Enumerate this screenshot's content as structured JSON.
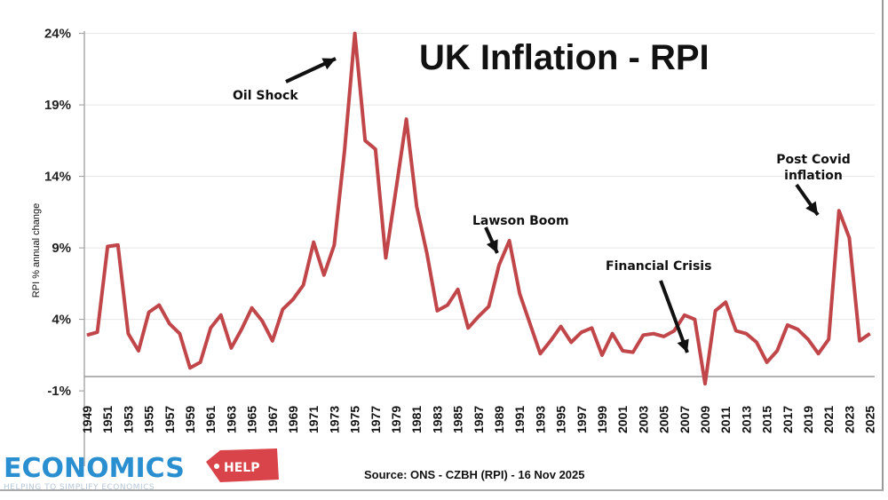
{
  "chart_data": {
    "type": "line",
    "title": "UK Inflation - RPI",
    "ylabel": "RPI % annual change",
    "xlabel": "",
    "ylim": [
      -1,
      24
    ],
    "yticks": [
      "24%",
      "19%",
      "14%",
      "9%",
      "4%",
      "-1%"
    ],
    "ytick_values": [
      24,
      19,
      14,
      9,
      4,
      -1
    ],
    "grid": true,
    "line_color": "#c0464a",
    "x": [
      1949,
      1950,
      1951,
      1952,
      1953,
      1954,
      1955,
      1956,
      1957,
      1958,
      1959,
      1960,
      1961,
      1962,
      1963,
      1964,
      1965,
      1966,
      1967,
      1968,
      1969,
      1970,
      1971,
      1972,
      1973,
      1974,
      1975,
      1976,
      1977,
      1978,
      1979,
      1980,
      1981,
      1982,
      1983,
      1984,
      1985,
      1986,
      1987,
      1988,
      1989,
      1990,
      1991,
      1992,
      1993,
      1994,
      1995,
      1996,
      1997,
      1998,
      1999,
      2000,
      2001,
      2002,
      2003,
      2004,
      2005,
      2006,
      2007,
      2008,
      2009,
      2010,
      2011,
      2012,
      2013,
      2014,
      2015,
      2016,
      2017,
      2018,
      2019,
      2020,
      2021,
      2022,
      2023,
      2024,
      2025
    ],
    "values": [
      2.9,
      3.1,
      9.1,
      9.2,
      3.0,
      1.8,
      4.5,
      5.0,
      3.7,
      3.0,
      0.6,
      1.0,
      3.4,
      4.3,
      2.0,
      3.3,
      4.8,
      3.9,
      2.5,
      4.7,
      5.4,
      6.4,
      9.4,
      7.1,
      9.2,
      15.8,
      24.0,
      16.5,
      15.9,
      8.3,
      13.1,
      18.0,
      11.9,
      8.6,
      4.6,
      5.0,
      6.1,
      3.4,
      4.2,
      4.9,
      7.8,
      9.5,
      5.8,
      3.7,
      1.6,
      2.5,
      3.5,
      2.4,
      3.1,
      3.4,
      1.5,
      3.0,
      1.8,
      1.7,
      2.9,
      3.0,
      2.8,
      3.2,
      4.3,
      4.0,
      -0.5,
      4.6,
      5.2,
      3.2,
      3.0,
      2.4,
      1.0,
      1.8,
      3.6,
      3.3,
      2.6,
      1.6,
      2.6,
      11.6,
      9.7,
      2.5,
      3.0
    ],
    "xtick_labels": [
      "1949",
      "1951",
      "1953",
      "1955",
      "1957",
      "1959",
      "1961",
      "1963",
      "1965",
      "1967",
      "1969",
      "1971",
      "1973",
      "1975",
      "1977",
      "1979",
      "1981",
      "1983",
      "1985",
      "1987",
      "1989",
      "1991",
      "1993",
      "1995",
      "1997",
      "1999",
      "2001",
      "2003",
      "2005",
      "2007",
      "2009",
      "2011",
      "2013",
      "2015",
      "2017",
      "2019",
      "2021",
      "2023",
      "2025"
    ],
    "annotations": [
      {
        "text": "Oil Shock",
        "year": 1975
      },
      {
        "text": "Lawson Boom",
        "year": 1989
      },
      {
        "text": "Financial Crisis",
        "year": 2008
      },
      {
        "text": "Post Covid",
        "text2": "inflation",
        "year": 2022
      }
    ]
  },
  "source": "Source: ONS - CZBH (RPI) - 16 Nov 2025",
  "logo": {
    "main": "ECONOMICS",
    "tag": "HELP",
    "tagline": "HELPING TO SIMPLIFY ECONOMICS",
    "brand_color": "#2a8fd0",
    "tag_color": "#d9434a"
  }
}
